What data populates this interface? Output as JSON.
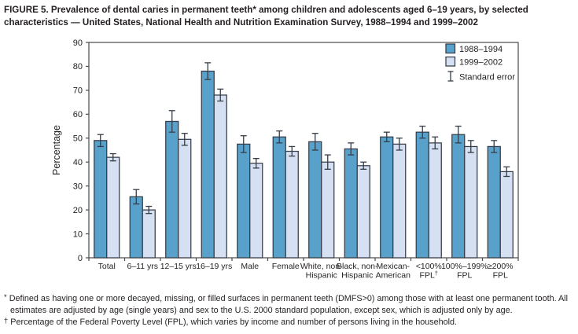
{
  "title": "FIGURE 5. Prevalence of dental caries in permanent teeth* among children and adolescents aged 6–19 years, by selected characteristics — United States, National Health and Nutrition Examination Survey, 1988–1994 and 1999–2002",
  "chart_data": {
    "type": "bar",
    "grouped": true,
    "title": "Prevalence of dental caries in permanent teeth among children and adolescents aged 6–19 years, 1988–1994 and 1999–2002",
    "xlabel": "",
    "ylabel": "Percentage",
    "ylim": [
      0,
      90
    ],
    "ytick_interval": 10,
    "grid": false,
    "legend_position": "top-right-inside",
    "stderr_label": "Standard error",
    "categories": [
      "Total",
      "6–11 yrs",
      "12–15 yrs",
      "16–19 yrs",
      "Male",
      "Female",
      "White, non-Hispanic",
      "Black, non-Hispanic",
      "Mexican-American",
      "<100% FPL†",
      "100%–199% FPL",
      "≥200% FPL"
    ],
    "category_label_lines": [
      [
        "Total"
      ],
      [
        "6–11 yrs"
      ],
      [
        "12–15 yrs"
      ],
      [
        "16–19 yrs"
      ],
      [
        "Male"
      ],
      [
        "Female"
      ],
      [
        "White, non-",
        "Hispanic"
      ],
      [
        "Black, non-",
        "Hispanic"
      ],
      [
        "Mexican-",
        "American"
      ],
      [
        "<100%",
        "FPL†"
      ],
      [
        "100%–199%",
        "FPL"
      ],
      [
        "≥200%",
        "FPL"
      ]
    ],
    "series": [
      {
        "name": "1988–1994",
        "color": "#58a1ca",
        "values": [
          49,
          25.5,
          57,
          78,
          47.5,
          50.5,
          48.5,
          45.5,
          50.5,
          52.5,
          51.5,
          46.5
        ],
        "stderr": [
          2.5,
          3,
          4.5,
          3.5,
          3.5,
          2.5,
          3.5,
          2.5,
          2,
          2.5,
          3.5,
          2.5
        ]
      },
      {
        "name": "1999–2002",
        "color": "#d5e0f2",
        "values": [
          42,
          20,
          49.5,
          68,
          39.5,
          44.5,
          40,
          38.5,
          47.5,
          48,
          46.5,
          36
        ],
        "stderr": [
          1.5,
          1.5,
          2.5,
          2.5,
          2,
          2,
          3,
          1.5,
          2.5,
          2.5,
          2.5,
          2
        ]
      }
    ]
  },
  "footnotes": [
    {
      "symbol": "*",
      "text": "Defined as having one or more decayed, missing, or filled surfaces in permanent teeth (DMFS>0) among those with at least one permanent tooth. All estimates are adjusted by age (single years) and sex to the U.S. 2000 standard population, except sex, which is adjusted only by age."
    },
    {
      "symbol": "†",
      "text": "Percentage of the Federal Poverty Level (FPL), which varies by income and number of persons living in the household."
    }
  ],
  "colors": {
    "bar_outline": "#363d47",
    "axis": "#4a4a4a",
    "text": "#231f20",
    "series1": "#58a1ca",
    "series2": "#d5e0f2"
  }
}
